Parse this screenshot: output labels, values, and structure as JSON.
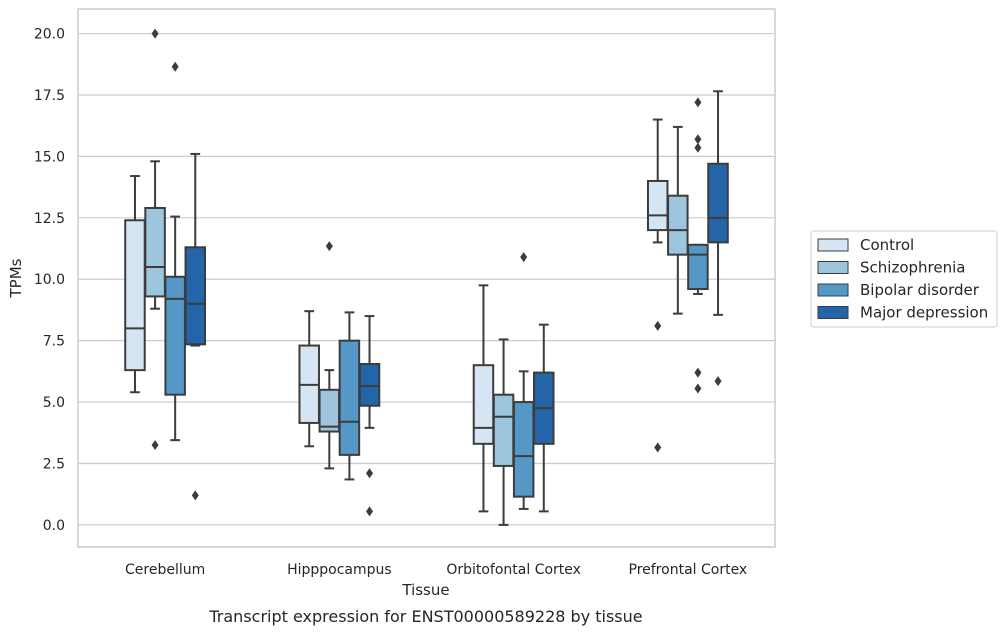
{
  "chart_data": {
    "type": "boxplot",
    "title": "",
    "caption": "Transcript expression for ENST00000589228 by tissue",
    "xlabel": "Tissue",
    "ylabel": "TPMs",
    "ylim": [
      -0.9,
      21.0
    ],
    "yticks": [
      "0.0",
      "2.5",
      "5.0",
      "7.5",
      "10.0",
      "12.5",
      "15.0",
      "17.5",
      "20.0"
    ],
    "grid": "horizontal",
    "legend_position": "right",
    "categories": [
      "Cerebellum",
      "Hipppocampus",
      "Orbitofontal Cortex",
      "Prefrontal Cortex"
    ],
    "series": [
      {
        "name": "Control",
        "color": "#d6e5f3",
        "boxes": [
          {
            "whislo": 5.4,
            "q1": 6.3,
            "med": 8.0,
            "q3": 12.4,
            "whishi": 14.2,
            "fliers": []
          },
          {
            "whislo": 3.2,
            "q1": 4.15,
            "med": 5.7,
            "q3": 7.3,
            "whishi": 8.7,
            "fliers": []
          },
          {
            "whislo": 0.55,
            "q1": 3.3,
            "med": 3.95,
            "q3": 6.5,
            "whishi": 9.75,
            "fliers": []
          },
          {
            "whislo": 11.5,
            "q1": 12.0,
            "med": 12.6,
            "q3": 14.0,
            "whishi": 16.5,
            "fliers": [
              8.1,
              3.15
            ]
          }
        ]
      },
      {
        "name": "Schizophrenia",
        "color": "#9dc5de",
        "boxes": [
          {
            "whislo": 8.8,
            "q1": 9.3,
            "med": 10.5,
            "q3": 12.9,
            "whishi": 14.8,
            "fliers": [
              20.0,
              3.25
            ]
          },
          {
            "whislo": 2.3,
            "q1": 3.8,
            "med": 4.0,
            "q3": 5.5,
            "whishi": 6.3,
            "fliers": [
              11.35
            ]
          },
          {
            "whislo": 0.0,
            "q1": 2.4,
            "med": 4.4,
            "q3": 5.3,
            "whishi": 7.55,
            "fliers": []
          },
          {
            "whislo": 8.6,
            "q1": 11.0,
            "med": 12.0,
            "q3": 13.4,
            "whishi": 16.2,
            "fliers": []
          }
        ]
      },
      {
        "name": "Bipolar disorder",
        "color": "#5597c6",
        "boxes": [
          {
            "whislo": 3.45,
            "q1": 5.3,
            "med": 9.2,
            "q3": 10.1,
            "whishi": 12.55,
            "fliers": [
              18.65
            ]
          },
          {
            "whislo": 1.85,
            "q1": 2.85,
            "med": 4.2,
            "q3": 7.5,
            "whishi": 8.65,
            "fliers": []
          },
          {
            "whislo": 0.65,
            "q1": 1.15,
            "med": 2.8,
            "q3": 5.0,
            "whishi": 6.25,
            "fliers": [
              10.9
            ]
          },
          {
            "whislo": 9.4,
            "q1": 9.6,
            "med": 11.0,
            "q3": 11.4,
            "whishi": 11.4,
            "fliers": [
              17.2,
              15.7,
              15.35,
              6.2,
              5.55
            ]
          }
        ]
      },
      {
        "name": "Major depression",
        "color": "#2464a9",
        "boxes": [
          {
            "whislo": 7.3,
            "q1": 7.35,
            "med": 9.0,
            "q3": 11.3,
            "whishi": 15.1,
            "fliers": [
              1.2
            ]
          },
          {
            "whislo": 3.95,
            "q1": 4.85,
            "med": 5.65,
            "q3": 6.55,
            "whishi": 8.5,
            "fliers": [
              2.1,
              0.55
            ]
          },
          {
            "whislo": 0.55,
            "q1": 3.3,
            "med": 4.75,
            "q3": 6.2,
            "whishi": 8.15,
            "fliers": []
          },
          {
            "whislo": 8.55,
            "q1": 11.5,
            "med": 12.5,
            "q3": 14.7,
            "whishi": 17.65,
            "fliers": [
              5.85
            ]
          }
        ]
      }
    ]
  }
}
